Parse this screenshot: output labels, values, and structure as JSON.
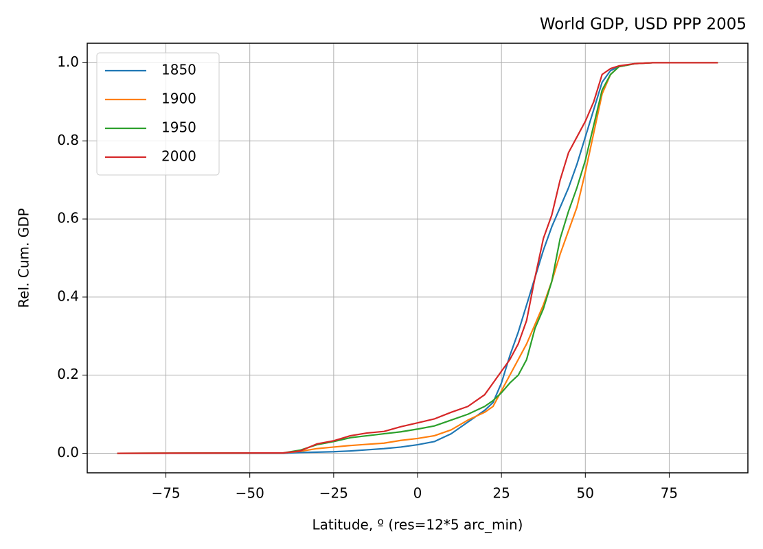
{
  "chart_data": {
    "type": "line",
    "title": "World GDP, USD PPP 2005",
    "xlabel": "Latitude, º (res=12*5 arc_min)",
    "ylabel": "Rel. Cum. GDP",
    "x": [
      -89.5,
      -40,
      -35,
      -30,
      -25,
      -20,
      -15,
      -10,
      -5,
      0,
      5,
      10,
      15,
      20,
      22.5,
      25,
      27.5,
      30,
      32.5,
      35,
      37.5,
      40,
      42.5,
      45,
      47.5,
      50,
      52.5,
      55,
      57.5,
      60,
      65,
      70,
      89.5
    ],
    "series": [
      {
        "name": "1850",
        "color": "#1f77b4",
        "values": [
          0,
          0,
          0.002,
          0.003,
          0.004,
          0.006,
          0.009,
          0.012,
          0.016,
          0.022,
          0.03,
          0.05,
          0.08,
          0.11,
          0.13,
          0.18,
          0.25,
          0.31,
          0.38,
          0.45,
          0.52,
          0.58,
          0.63,
          0.68,
          0.74,
          0.81,
          0.88,
          0.95,
          0.98,
          0.99,
          0.998,
          1,
          1
        ]
      },
      {
        "name": "1900",
        "color": "#ff7f0e",
        "values": [
          0,
          0.001,
          0.005,
          0.012,
          0.016,
          0.02,
          0.023,
          0.026,
          0.033,
          0.038,
          0.045,
          0.06,
          0.085,
          0.105,
          0.12,
          0.16,
          0.2,
          0.24,
          0.28,
          0.33,
          0.38,
          0.44,
          0.51,
          0.57,
          0.63,
          0.72,
          0.82,
          0.92,
          0.97,
          0.99,
          0.998,
          1,
          1
        ]
      },
      {
        "name": "1950",
        "color": "#2ca02c",
        "values": [
          0,
          0.001,
          0.008,
          0.022,
          0.03,
          0.04,
          0.045,
          0.05,
          0.055,
          0.062,
          0.07,
          0.085,
          0.1,
          0.12,
          0.135,
          0.155,
          0.18,
          0.2,
          0.24,
          0.32,
          0.37,
          0.44,
          0.55,
          0.62,
          0.68,
          0.75,
          0.84,
          0.93,
          0.97,
          0.99,
          0.998,
          1,
          1
        ]
      },
      {
        "name": "2000",
        "color": "#d62728",
        "values": [
          0,
          0.001,
          0.006,
          0.024,
          0.032,
          0.045,
          0.052,
          0.056,
          0.068,
          0.078,
          0.088,
          0.105,
          0.12,
          0.15,
          0.18,
          0.21,
          0.24,
          0.28,
          0.34,
          0.45,
          0.55,
          0.61,
          0.7,
          0.77,
          0.81,
          0.85,
          0.9,
          0.97,
          0.985,
          0.992,
          0.998,
          1,
          1
        ]
      }
    ],
    "xlim": [
      -98.45,
      98.45
    ],
    "ylim": [
      -0.05,
      1.05
    ],
    "xticks": [
      {
        "value": -75,
        "label": "−75"
      },
      {
        "value": -50,
        "label": "−50"
      },
      {
        "value": -25,
        "label": "−25"
      },
      0,
      25,
      50,
      75
    ],
    "yticks": [
      {
        "value": 0,
        "label": "0.0"
      },
      0.2,
      0.4,
      0.6,
      0.8,
      {
        "value": 1,
        "label": "1.0"
      }
    ],
    "grid": true,
    "legend": "upper-left"
  }
}
